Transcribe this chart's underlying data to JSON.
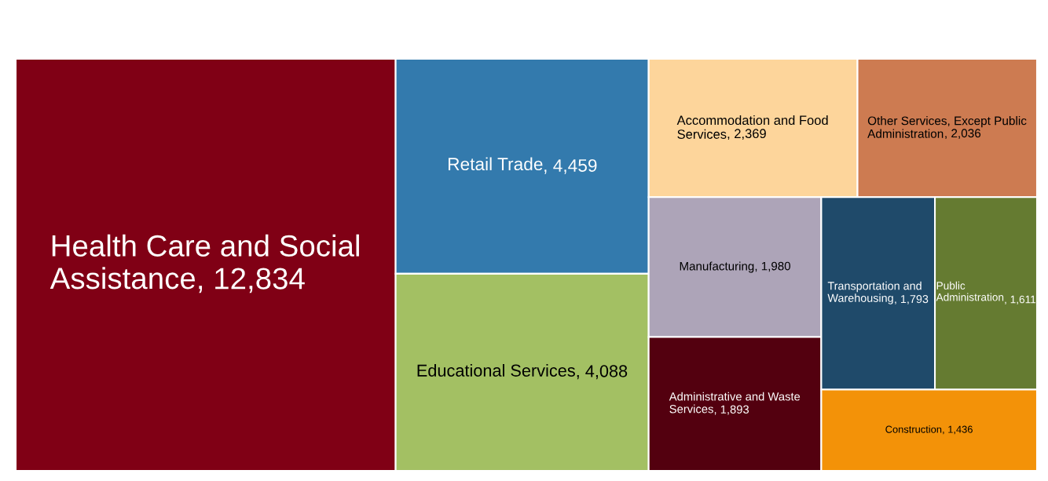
{
  "chart_data": {
    "type": "other",
    "categories": [
      "Health Care and Social Assistance",
      "Retail Trade",
      "Educational Services",
      "Accommodation and Food Services",
      "Other Services, Except Public Administration",
      "Manufacturing",
      "Administrative and Waste Services",
      "Transportation and Warehousing",
      "Public Administration",
      "Construction"
    ],
    "values": [
      12834,
      4459,
      4088,
      2369,
      2036,
      1980,
      1893,
      1793,
      1611,
      1436
    ],
    "value_labels": [
      ", 12,834",
      ", 4,459",
      ", 4,088",
      ", 2,369",
      ", 2,036",
      ", 1,980",
      ", 1,893",
      ", 1,793",
      ", 1,611",
      ", 1,436"
    ],
    "colors": [
      "#800015",
      "#337aad",
      "#a3c063",
      "#fdd59b",
      "#cd7b51",
      "#ada4b8",
      "#53000f",
      "#1f4a6a",
      "#657b31",
      "#f39208"
    ]
  }
}
